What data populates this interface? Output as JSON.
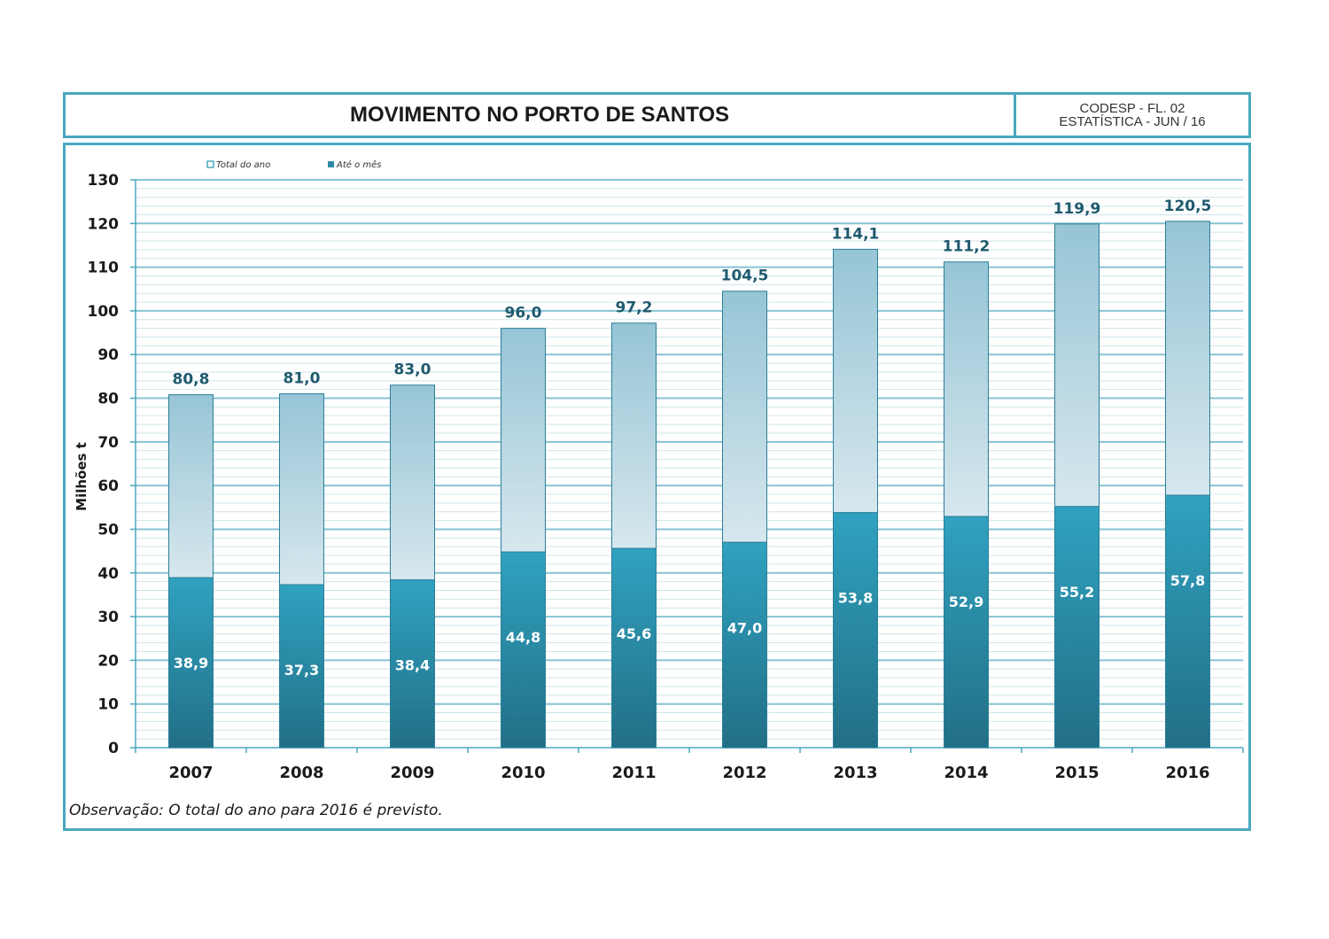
{
  "header": {
    "title": "MOVIMENTO NO PORTO DE SANTOS",
    "ref_line1": "CODESP - FL. 02",
    "ref_line2": "ESTATÍSTICA - JUN  /  16"
  },
  "note": "Observação: O total do ano para 2016 é previsto.",
  "colors": {
    "frame": "#4aa8bf",
    "total_top": "#96c5d6",
    "total_bottom": "#d7e7ee",
    "month_top": "#30a2c0",
    "month_bottom": "#226f86",
    "total_label": "#1f5a6e",
    "month_label": "#ffffff"
  },
  "chart_data": {
    "type": "bar",
    "categories": [
      "2007",
      "2008",
      "2009",
      "2010",
      "2011",
      "2012",
      "2013",
      "2014",
      "2015",
      "2016"
    ],
    "series": [
      {
        "name": "Total do ano",
        "values": [
          80.8,
          81.0,
          83.0,
          96.0,
          97.2,
          104.5,
          114.1,
          111.2,
          119.9,
          120.5
        ],
        "labels": [
          "80,8",
          "81,0",
          "83,0",
          "96,0",
          "97,2",
          "104,5",
          "114,1",
          "111,2",
          "119,9",
          "120,5"
        ]
      },
      {
        "name": "Até o mês",
        "values": [
          38.9,
          37.3,
          38.4,
          44.8,
          45.6,
          47.0,
          53.8,
          52.9,
          55.2,
          57.8
        ],
        "labels": [
          "38,9",
          "37,3",
          "38,4",
          "44,8",
          "45,6",
          "47,0",
          "53,8",
          "52,9",
          "55,2",
          "57,8"
        ]
      }
    ],
    "ylabel": "Milhões   t",
    "xlabel": "",
    "ylim": [
      0,
      130
    ],
    "yticks": [
      0,
      10,
      20,
      30,
      40,
      50,
      60,
      70,
      80,
      90,
      100,
      110,
      120,
      130
    ],
    "grid": true,
    "legend_position": "top-left"
  }
}
